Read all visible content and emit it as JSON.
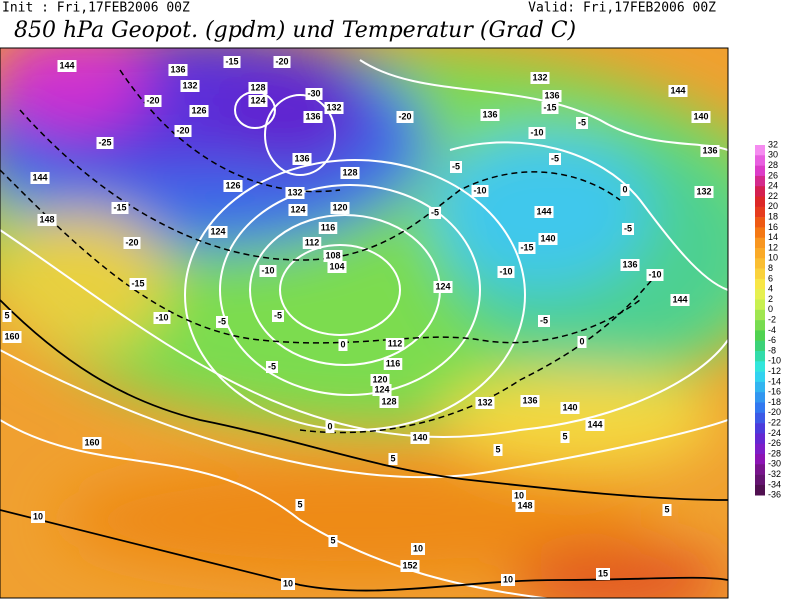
{
  "header": {
    "init": "Init : Fri,17FEB2006 00Z",
    "valid": "Valid: Fri,17FEB2006 00Z",
    "title": "850 hPa Geopot. (gpdm) und Temperatur (Grad C)"
  },
  "colorbar": {
    "ticks": [
      32,
      30,
      28,
      26,
      24,
      22,
      20,
      18,
      16,
      14,
      12,
      10,
      8,
      6,
      4,
      2,
      0,
      -2,
      -4,
      -6,
      -8,
      -10,
      -12,
      -14,
      -16,
      -18,
      -20,
      -22,
      -24,
      -26,
      -28,
      -30,
      -32,
      -34,
      -36
    ],
    "colors": [
      "#f58cf0",
      "#e85fe0",
      "#dc3cc8",
      "#d42a8c",
      "#d42050",
      "#dc2828",
      "#e63c1e",
      "#ee5a14",
      "#f47814",
      "#f89620",
      "#faaa28",
      "#fabe32",
      "#fad23c",
      "#f8e646",
      "#e6f050",
      "#c8f050",
      "#a0e650",
      "#78dc50",
      "#50d250",
      "#3cd278",
      "#32dcaa",
      "#32e6dc",
      "#32d2f0",
      "#32b4f0",
      "#3296f0",
      "#3278f0",
      "#3c5ae6",
      "#4b3cdc",
      "#6428d2",
      "#7d1ec8",
      "#8c14b4",
      "#78148c",
      "#641470",
      "#501050"
    ]
  },
  "isohypse_labels": [
    "144",
    "136",
    "132",
    "128",
    "124",
    "126",
    "132",
    "136",
    "136",
    "132",
    "128",
    "124",
    "120",
    "116",
    "112",
    "108",
    "104",
    "124",
    "112",
    "116",
    "120",
    "124",
    "128",
    "132",
    "136",
    "140",
    "144",
    "140",
    "148",
    "152",
    "160",
    "160",
    "148",
    "144",
    "132",
    "136",
    "136",
    "144",
    "140",
    "136",
    "132",
    "144",
    "140",
    "136",
    "144",
    "126",
    "124"
  ],
  "isotherm_labels": [
    "-15",
    "-20",
    "-20",
    "-20",
    "-25",
    "-30",
    "-20",
    "-15",
    "-20",
    "-15",
    "-10",
    "-5",
    "-10",
    "-5",
    "-5",
    "-5",
    "-5",
    "0",
    "0",
    "0",
    "5",
    "5",
    "5",
    "5",
    "5",
    "10",
    "10",
    "10",
    "10",
    "15",
    "10",
    "-5",
    "-5",
    "-10",
    "-15",
    "-10",
    "-15",
    "-10",
    "-5",
    "0",
    "-10",
    "-5",
    "5",
    "5"
  ]
}
